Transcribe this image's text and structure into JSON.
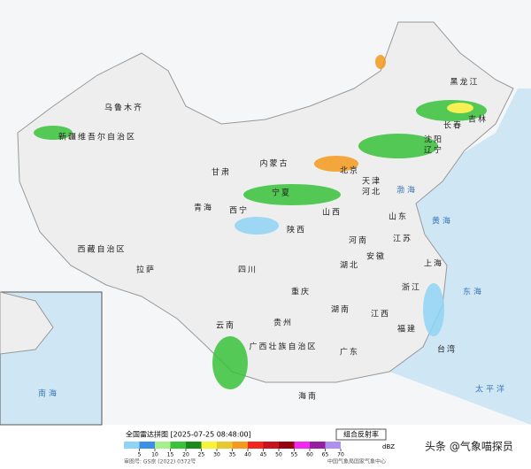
{
  "legend": {
    "title": "全国雷达拼图 [2025-07-25 08:48:00]",
    "product": "组合反射率",
    "unit": "dBZ",
    "ticks": [
      5,
      10,
      15,
      20,
      25,
      30,
      35,
      40,
      45,
      50,
      55,
      60,
      65,
      70
    ],
    "colors": [
      "#8fd3f5",
      "#3c8fe6",
      "#a6f08c",
      "#39c23a",
      "#1a8a1a",
      "#f7f23a",
      "#e8c830",
      "#f59a1e",
      "#f0281e",
      "#c8141e",
      "#96000f",
      "#f028f0",
      "#961ea0",
      "#ad90f0"
    ],
    "footer_left": "审图号: GS京 (2022) 0372号",
    "footer_right": "中国气象局国家气象中心"
  },
  "watermark": "头条 @气象喵探员",
  "map": {
    "labels": [
      "新疆维吾尔自治区",
      "乌鲁木齐",
      "西藏自治区",
      "拉萨",
      "青海",
      "西宁",
      "甘肃",
      "内蒙古",
      "黑龙江",
      "吉林",
      "长春",
      "辽宁",
      "沈阳",
      "北京",
      "天津",
      "河北",
      "山西",
      "山东",
      "河南",
      "陕西",
      "宁夏",
      "四川",
      "重庆",
      "湖北",
      "湖南",
      "江西",
      "安徽",
      "江苏",
      "上海",
      "浙江",
      "福建",
      "台湾",
      "广东",
      "广西壮族自治区",
      "贵州",
      "云南",
      "海南",
      "渤海",
      "黄海",
      "东海",
      "太平洋",
      "南海"
    ]
  }
}
